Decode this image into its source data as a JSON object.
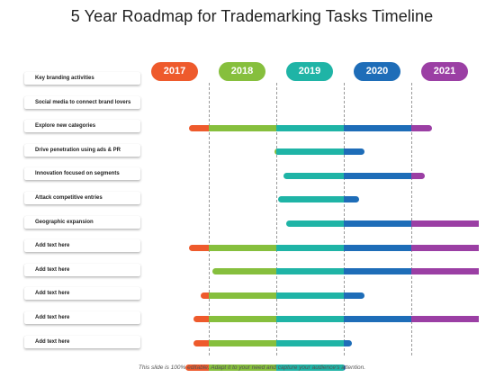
{
  "title": "5 Year Roadmap for Trademarking Tasks Timeline",
  "years": [
    {
      "label": "2017",
      "color": "#ee5a2c"
    },
    {
      "label": "2018",
      "color": "#86bf3d"
    },
    {
      "label": "2019",
      "color": "#1fb4a6"
    },
    {
      "label": "2020",
      "color": "#1e6db8"
    },
    {
      "label": "2021",
      "color": "#9b3fa4"
    }
  ],
  "tasks": [
    {
      "label": "Key branding activities",
      "start": null,
      "end": null
    },
    {
      "label": "Social media to connect brand lovers",
      "start": 2016.7,
      "end": 2020.3
    },
    {
      "label": "Explore new categories",
      "start": 2017.97,
      "end": 2019.3
    },
    {
      "label": "Drive penetration using ads & PR",
      "start": 2018.1,
      "end": 2020.2
    },
    {
      "label": "Innovation focused on segments",
      "start": 2018.03,
      "end": 2019.22
    },
    {
      "label": "Attack competitive entries",
      "start": 2018.15,
      "end": 2021.1
    },
    {
      "label": "Geographic expansion",
      "start": 2016.7,
      "end": 2021.7
    },
    {
      "label": "Add text here",
      "start": 2017.05,
      "end": 2021.52
    },
    {
      "label": "Add text here",
      "start": 2016.88,
      "end": 2019.3
    },
    {
      "label": "Add text here",
      "start": 2016.77,
      "end": 2021.67
    },
    {
      "label": "Add text here",
      "start": 2016.77,
      "end": 2019.12
    },
    {
      "label": "Add text here",
      "start": 2016.65,
      "end": 2019.03
    }
  ],
  "footer": "This slide is 100% editable. Adapt it to your need and capture your audience's attention."
}
